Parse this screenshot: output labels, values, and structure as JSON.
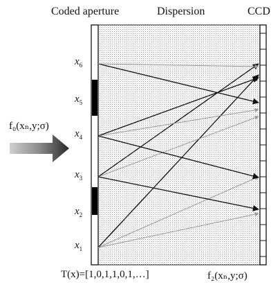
{
  "headers": {
    "coded_aperture": "Coded  aperture",
    "dispersion": "Dispersion",
    "ccd": "CCD"
  },
  "input_label": "f₀(xₙ,y;σ)",
  "output_label": "f₂(xₙ,y;σ)",
  "transmission_label": "T(x)=[1,0,1,1,0,1,…]",
  "aperture_code": [
    1,
    0,
    1,
    1,
    0,
    1
  ],
  "positions": [
    {
      "label": "x",
      "sub": "1"
    },
    {
      "label": "x",
      "sub": "2"
    },
    {
      "label": "x",
      "sub": "3"
    },
    {
      "label": "x",
      "sub": "4"
    },
    {
      "label": "x",
      "sub": "5"
    },
    {
      "label": "x",
      "sub": "6"
    }
  ]
}
